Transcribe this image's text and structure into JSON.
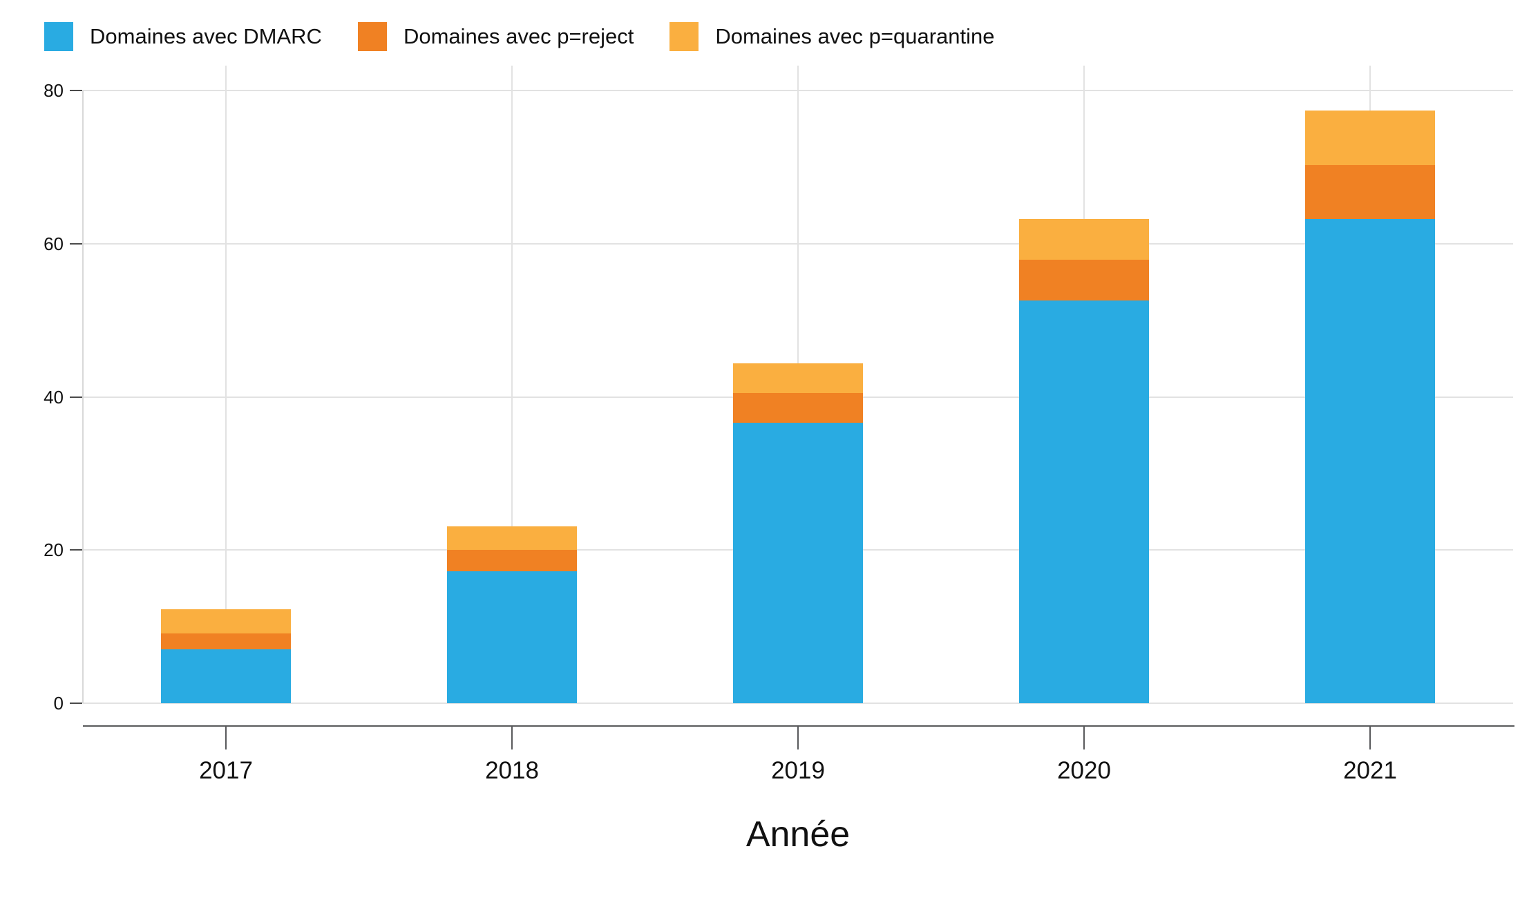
{
  "chart_data": {
    "type": "bar",
    "stacked": true,
    "title": "",
    "xlabel": "Année",
    "ylabel": "",
    "categories": [
      "2017",
      "2018",
      "2019",
      "2020",
      "2021"
    ],
    "series": [
      {
        "name": "Domaines avec DMARC",
        "color": "#29ABE2",
        "values": [
          7,
          17.2,
          36.6,
          52.6,
          63.2
        ]
      },
      {
        "name": "Domaines avec p=reject",
        "color": "#F08123",
        "values": [
          2.1,
          2.8,
          3.9,
          5.3,
          7.1
        ]
      },
      {
        "name": "Domaines avec p=quarantine",
        "color": "#FAAF40",
        "values": [
          3.2,
          3.1,
          3.9,
          5.3,
          7.1
        ]
      }
    ],
    "ylim": [
      0,
      80
    ],
    "yticks": [
      0,
      20,
      40,
      60,
      80
    ],
    "grid": true,
    "legend_position": "top-left"
  },
  "colors": {
    "background": "#FFFFFF",
    "gridline": "#E2E2E2",
    "y_axis_line": "#D9D9D9",
    "x_axis_line": "#58595B",
    "tick": "#4A4A4A",
    "text": "#111111"
  }
}
